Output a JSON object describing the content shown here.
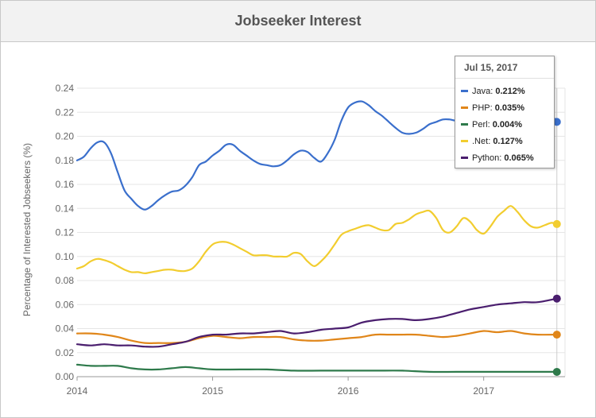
{
  "header": {
    "title": "Jobseeker Interest"
  },
  "tooltip": {
    "date": "Jul 15, 2017",
    "rows": [
      {
        "name": "Java",
        "value": "0.212%",
        "color": "#3a6fcc"
      },
      {
        "name": "PHP",
        "value": "0.035%",
        "color": "#e0861a"
      },
      {
        "name": "Perl",
        "value": "0.004%",
        "color": "#2e7a4b"
      },
      {
        "name": ".Net",
        "value": "0.127%",
        "color": "#f2cd2f"
      },
      {
        "name": "Python",
        "value": "0.065%",
        "color": "#4a1e6e"
      }
    ]
  },
  "chart_data": {
    "type": "line",
    "title": "Jobseeker Interest",
    "xlabel": "",
    "ylabel": "Percentage of Interested Jobseekers (%)",
    "xlim": [
      2014.0,
      2017.6
    ],
    "ylim": [
      0.0,
      0.24
    ],
    "yticks": [
      "0.00",
      "0.02",
      "0.04",
      "0.06",
      "0.08",
      "0.10",
      "0.12",
      "0.14",
      "0.16",
      "0.18",
      "0.20",
      "0.22",
      "0.24"
    ],
    "xticks": [
      {
        "value": 2014,
        "label": "2014"
      },
      {
        "value": 2015,
        "label": "2015"
      },
      {
        "value": 2016,
        "label": "2016"
      },
      {
        "value": 2017,
        "label": "2017"
      }
    ],
    "grid": true,
    "series": [
      {
        "name": "Java",
        "color": "#3a6fcc",
        "x": [
          2014.0,
          2014.05,
          2014.1,
          2014.15,
          2014.2,
          2014.25,
          2014.3,
          2014.35,
          2014.4,
          2014.45,
          2014.5,
          2014.55,
          2014.6,
          2014.65,
          2014.7,
          2014.75,
          2014.8,
          2014.85,
          2014.9,
          2014.95,
          2015.0,
          2015.05,
          2015.1,
          2015.15,
          2015.2,
          2015.25,
          2015.3,
          2015.35,
          2015.4,
          2015.45,
          2015.5,
          2015.55,
          2015.6,
          2015.65,
          2015.7,
          2015.75,
          2015.8,
          2015.85,
          2015.9,
          2015.95,
          2016.0,
          2016.05,
          2016.1,
          2016.15,
          2016.2,
          2016.25,
          2016.3,
          2016.35,
          2016.4,
          2016.45,
          2016.5,
          2016.55,
          2016.6,
          2016.65,
          2016.7,
          2016.75,
          2016.8,
          2016.85,
          2016.9,
          2016.95,
          2017.0,
          2017.05,
          2017.1,
          2017.15,
          2017.2,
          2017.25,
          2017.3,
          2017.35,
          2017.4,
          2017.45,
          2017.5,
          2017.54
        ],
        "y": [
          0.18,
          0.183,
          0.19,
          0.195,
          0.195,
          0.186,
          0.17,
          0.155,
          0.148,
          0.142,
          0.139,
          0.142,
          0.147,
          0.151,
          0.154,
          0.155,
          0.159,
          0.166,
          0.176,
          0.179,
          0.184,
          0.188,
          0.193,
          0.193,
          0.188,
          0.184,
          0.18,
          0.177,
          0.176,
          0.175,
          0.176,
          0.18,
          0.185,
          0.188,
          0.187,
          0.182,
          0.179,
          0.186,
          0.197,
          0.213,
          0.224,
          0.228,
          0.229,
          0.226,
          0.221,
          0.217,
          0.212,
          0.207,
          0.203,
          0.202,
          0.203,
          0.206,
          0.21,
          0.212,
          0.214,
          0.214,
          0.213,
          0.215,
          0.214,
          0.215,
          0.216,
          0.217,
          0.217,
          0.216,
          0.217,
          0.218,
          0.217,
          0.216,
          0.216,
          0.217,
          0.217,
          0.212
        ]
      },
      {
        "name": "PHP",
        "color": "#e0861a",
        "x": [
          2014.0,
          2014.1,
          2014.2,
          2014.3,
          2014.4,
          2014.5,
          2014.6,
          2014.7,
          2014.8,
          2014.9,
          2015.0,
          2015.1,
          2015.2,
          2015.3,
          2015.4,
          2015.5,
          2015.6,
          2015.7,
          2015.8,
          2015.9,
          2016.0,
          2016.1,
          2016.2,
          2016.3,
          2016.4,
          2016.5,
          2016.6,
          2016.7,
          2016.8,
          2016.9,
          2017.0,
          2017.1,
          2017.2,
          2017.3,
          2017.4,
          2017.54
        ],
        "y": [
          0.036,
          0.036,
          0.035,
          0.033,
          0.03,
          0.028,
          0.028,
          0.028,
          0.029,
          0.032,
          0.034,
          0.033,
          0.032,
          0.033,
          0.033,
          0.033,
          0.031,
          0.03,
          0.03,
          0.031,
          0.032,
          0.033,
          0.035,
          0.035,
          0.035,
          0.035,
          0.034,
          0.033,
          0.034,
          0.036,
          0.038,
          0.037,
          0.038,
          0.036,
          0.035,
          0.035
        ]
      },
      {
        "name": "Perl",
        "color": "#2e7a4b",
        "x": [
          2014.0,
          2014.1,
          2014.2,
          2014.3,
          2014.4,
          2014.5,
          2014.6,
          2014.7,
          2014.8,
          2014.9,
          2015.0,
          2015.2,
          2015.4,
          2015.6,
          2015.8,
          2016.0,
          2016.2,
          2016.4,
          2016.6,
          2016.8,
          2017.0,
          2017.2,
          2017.4,
          2017.54
        ],
        "y": [
          0.01,
          0.009,
          0.009,
          0.009,
          0.007,
          0.006,
          0.006,
          0.007,
          0.008,
          0.007,
          0.006,
          0.006,
          0.006,
          0.005,
          0.005,
          0.005,
          0.005,
          0.005,
          0.004,
          0.004,
          0.004,
          0.004,
          0.004,
          0.004
        ]
      },
      {
        "name": ".Net",
        "color": "#f2cd2f",
        "x": [
          2014.0,
          2014.05,
          2014.1,
          2014.15,
          2014.2,
          2014.25,
          2014.3,
          2014.35,
          2014.4,
          2014.45,
          2014.5,
          2014.55,
          2014.6,
          2014.65,
          2014.7,
          2014.75,
          2014.8,
          2014.85,
          2014.9,
          2014.95,
          2015.0,
          2015.05,
          2015.1,
          2015.15,
          2015.2,
          2015.25,
          2015.3,
          2015.35,
          2015.4,
          2015.45,
          2015.5,
          2015.55,
          2015.6,
          2015.65,
          2015.7,
          2015.75,
          2015.8,
          2015.85,
          2015.9,
          2015.95,
          2016.0,
          2016.05,
          2016.1,
          2016.15,
          2016.2,
          2016.25,
          2016.3,
          2016.35,
          2016.4,
          2016.45,
          2016.5,
          2016.55,
          2016.6,
          2016.65,
          2016.7,
          2016.75,
          2016.8,
          2016.85,
          2016.9,
          2016.95,
          2017.0,
          2017.05,
          2017.1,
          2017.15,
          2017.2,
          2017.25,
          2017.3,
          2017.35,
          2017.4,
          2017.45,
          2017.5,
          2017.54
        ],
        "y": [
          0.09,
          0.092,
          0.096,
          0.098,
          0.097,
          0.095,
          0.092,
          0.089,
          0.087,
          0.087,
          0.086,
          0.087,
          0.088,
          0.089,
          0.089,
          0.088,
          0.088,
          0.09,
          0.096,
          0.104,
          0.11,
          0.112,
          0.112,
          0.11,
          0.107,
          0.104,
          0.101,
          0.101,
          0.101,
          0.1,
          0.1,
          0.1,
          0.103,
          0.102,
          0.096,
          0.092,
          0.096,
          0.102,
          0.11,
          0.118,
          0.121,
          0.123,
          0.125,
          0.126,
          0.124,
          0.122,
          0.122,
          0.127,
          0.128,
          0.131,
          0.135,
          0.137,
          0.138,
          0.132,
          0.122,
          0.12,
          0.125,
          0.132,
          0.129,
          0.122,
          0.119,
          0.125,
          0.133,
          0.138,
          0.142,
          0.137,
          0.13,
          0.125,
          0.124,
          0.126,
          0.128,
          0.127
        ]
      },
      {
        "name": "Python",
        "color": "#4a1e6e",
        "x": [
          2014.0,
          2014.1,
          2014.2,
          2014.3,
          2014.4,
          2014.5,
          2014.6,
          2014.7,
          2014.8,
          2014.9,
          2015.0,
          2015.1,
          2015.2,
          2015.3,
          2015.4,
          2015.5,
          2015.6,
          2015.7,
          2015.8,
          2015.9,
          2016.0,
          2016.1,
          2016.2,
          2016.3,
          2016.4,
          2016.5,
          2016.6,
          2016.7,
          2016.8,
          2016.9,
          2017.0,
          2017.1,
          2017.2,
          2017.3,
          2017.4,
          2017.54
        ],
        "y": [
          0.027,
          0.026,
          0.027,
          0.026,
          0.026,
          0.025,
          0.025,
          0.027,
          0.029,
          0.033,
          0.035,
          0.035,
          0.036,
          0.036,
          0.037,
          0.038,
          0.036,
          0.037,
          0.039,
          0.04,
          0.041,
          0.045,
          0.047,
          0.048,
          0.048,
          0.047,
          0.048,
          0.05,
          0.053,
          0.056,
          0.058,
          0.06,
          0.061,
          0.062,
          0.062,
          0.065
        ]
      }
    ]
  }
}
